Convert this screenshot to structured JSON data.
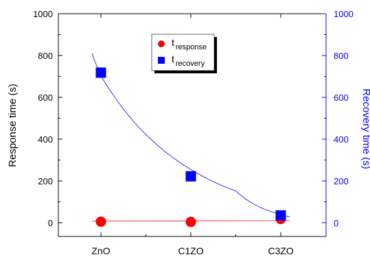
{
  "chart_data": {
    "type": "scatter",
    "categories": [
      "ZnO",
      "C1ZO",
      "C3ZO"
    ],
    "ylabel": "Response time (s)",
    "ylabel_right": "Recovery time (s)",
    "ylim": [
      0,
      1000
    ],
    "ylim_right": [
      0,
      1000
    ],
    "yticks": [
      "0",
      "200",
      "400",
      "600",
      "800",
      "1000"
    ],
    "yticks_right": [
      "0",
      "200",
      "400",
      "600",
      "800",
      "1000"
    ],
    "legend": {
      "position": "top-center",
      "entries": [
        {
          "main": "t",
          "sub": "response"
        },
        {
          "main": "t",
          "sub": "recovery"
        }
      ]
    },
    "series": [
      {
        "key": "response",
        "axis": "left",
        "marker": "circle",
        "color": "#ff0000",
        "values": [
          5,
          4,
          18
        ],
        "fit": {
          "type": "linear",
          "x_range": [
            -0.1,
            2.1
          ],
          "y": [
            8,
            10
          ]
        }
      },
      {
        "key": "recovery",
        "axis": "right",
        "marker": "square",
        "color": "#0000ff",
        "values": [
          718,
          222,
          35
        ],
        "fit": {
          "type": "exponential",
          "x_range": [
            -0.1,
            2.1
          ],
          "points": [
            [
              -0.1,
              810
            ],
            [
              0,
              702
            ],
            [
              0.5,
              422
            ],
            [
              1,
              255
            ],
            [
              1.5,
              152
            ],
            [
              2,
              40
            ],
            [
              2.1,
              28
            ]
          ]
        }
      }
    ],
    "axis_colors": {
      "left": "#000000",
      "right": "#0000ff"
    }
  }
}
